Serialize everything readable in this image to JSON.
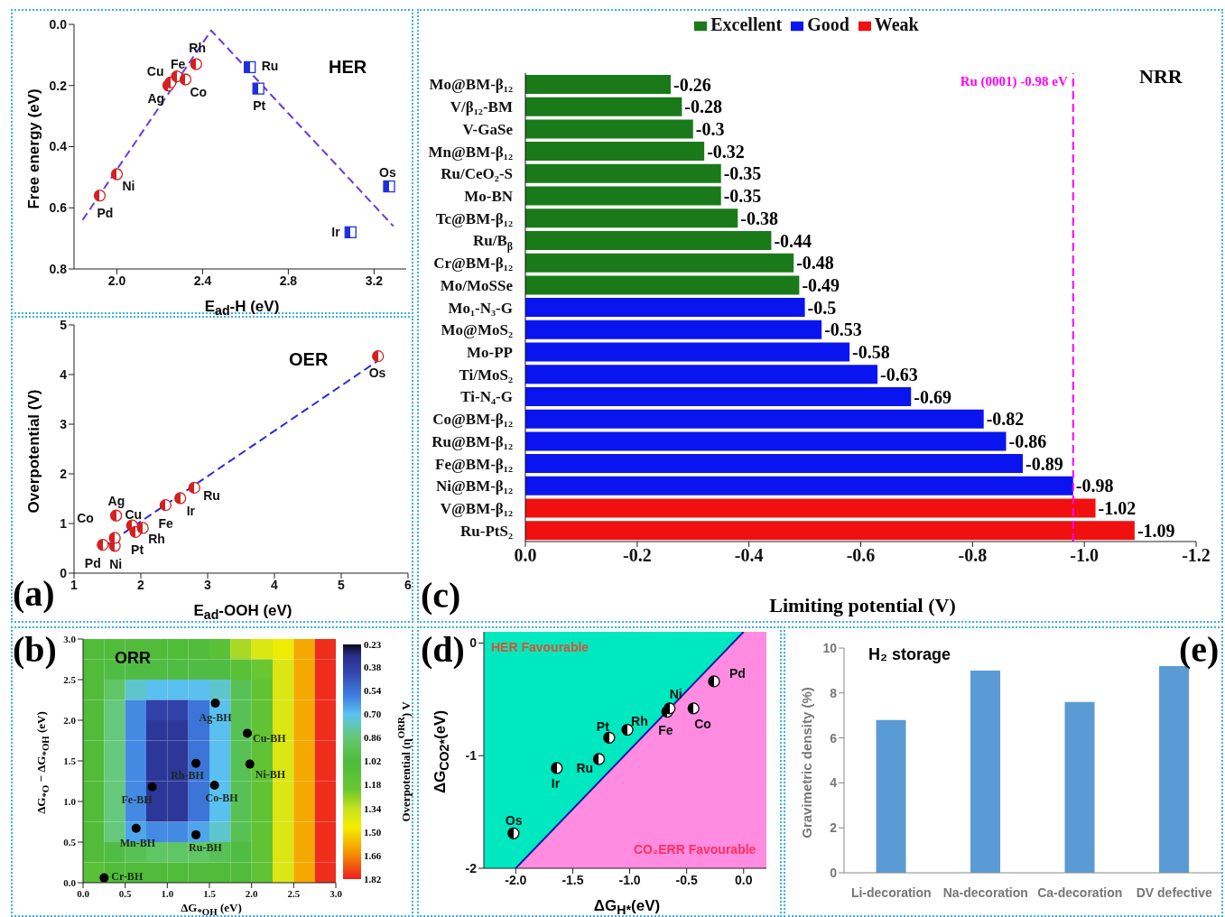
{
  "chart_data": [
    {
      "type": "scatter",
      "xlabel": "E$_{ad}$-H (eV)",
      "ylabel": "Free energy (eV)",
      "xlim": [
        1.8,
        3.35
      ],
      "xticks": [
        {
          "value": 2,
          "label": "2.0"
        },
        2.4,
        2.8,
        3.2
      ],
      "ylim": [
        0.8,
        0
      ],
      "yticks": [
        {
          "value": 0,
          "label": "0.0"
        },
        0.2,
        0.4,
        0.6,
        0.8
      ],
      "series": [
        {
          "type": "scatter",
          "color": "#d42020",
          "marker": "circle",
          "x": [
            1.92,
            2.0,
            2.24,
            2.25,
            2.28,
            2.32,
            2.37
          ],
          "values": [
            0.56,
            0.49,
            0.2,
            0.19,
            0.17,
            0.18,
            0.13
          ]
        },
        {
          "type": "scatter",
          "color": "#1f2fe0",
          "marker": "square",
          "x": [
            2.62,
            2.66,
            3.27,
            3.09
          ],
          "values": [
            0.14,
            0.21,
            0.53,
            0.68
          ]
        },
        {
          "type": "line",
          "color": "#6a3ae0",
          "line_style": "dashed",
          "x": [
            1.84,
            2.44,
            3.29
          ],
          "values": [
            0.64,
            0.02,
            0.66
          ]
        }
      ],
      "annotations": [
        {
          "text": "Pd",
          "x": 1.92,
          "y": 0.56
        },
        {
          "text": "Ni",
          "x": 2.0,
          "y": 0.49
        },
        {
          "text": "Ag",
          "x": 2.24,
          "y": 0.2
        },
        {
          "text": "Cu",
          "x": 2.25,
          "y": 0.19
        },
        {
          "text": "Fe",
          "x": 2.28,
          "y": 0.17
        },
        {
          "text": "Co",
          "x": 2.32,
          "y": 0.18
        },
        {
          "text": "Rh",
          "x": 2.37,
          "y": 0.13
        },
        {
          "text": "Ru",
          "x": 2.62,
          "y": 0.14
        },
        {
          "text": "Pt",
          "x": 2.66,
          "y": 0.21
        },
        {
          "text": "Os",
          "x": 3.27,
          "y": 0.53
        },
        {
          "text": "Ir",
          "x": 3.09,
          "y": 0.68
        },
        "HER"
      ]
    },
    {
      "type": "scatter",
      "xlabel": "E$_{ad}$-OOH (eV)",
      "ylabel": "Overpotential (V)",
      "xlim": [
        1,
        6
      ],
      "xticks": [
        1,
        2,
        3,
        4,
        5,
        6
      ],
      "ylim": [
        0,
        5
      ],
      "yticks": [
        0,
        1,
        2,
        3,
        4,
        5
      ],
      "series": [
        {
          "type": "scatter",
          "color": "#d42020",
          "marker": "circle",
          "x": [
            1.43,
            1.61,
            1.61,
            1.63,
            1.87,
            1.92,
            2.03,
            2.37,
            2.59,
            2.8,
            5.55
          ],
          "values": [
            0.57,
            0.55,
            0.71,
            1.16,
            0.96,
            0.83,
            0.91,
            1.37,
            1.51,
            1.72,
            4.37
          ]
        },
        {
          "type": "line",
          "color": "#2a2ae0",
          "line_style": "dashed",
          "x": [
            1.43,
            5.53
          ],
          "values": [
            0.52,
            4.26
          ]
        }
      ],
      "annotations": [
        {
          "text": "Pd",
          "x": 1.43,
          "y": 0.57
        },
        {
          "text": "Ni",
          "x": 1.61,
          "y": 0.55
        },
        {
          "text": "Co",
          "x": 1.61,
          "y": 0.71
        },
        {
          "text": "Ag",
          "x": 1.63,
          "y": 1.16
        },
        {
          "text": "Cu",
          "x": 1.87,
          "y": 0.96
        },
        {
          "text": "Pt",
          "x": 1.92,
          "y": 0.83
        },
        {
          "text": "Rh",
          "x": 2.03,
          "y": 0.91
        },
        {
          "text": "Fe",
          "x": 2.37,
          "y": 1.37
        },
        {
          "text": "Ir",
          "x": 2.59,
          "y": 1.51
        },
        {
          "text": "Ru",
          "x": 2.8,
          "y": 1.72
        },
        {
          "text": "Os",
          "x": 5.55,
          "y": 4.37
        },
        "OER",
        "(a)"
      ]
    },
    {
      "type": "bar",
      "orientation": "horizontal",
      "stacked": true,
      "legend": "top",
      "data_labels": true,
      "xlabel": "Limiting potential (V)",
      "categories": [
        "Mo@BM-β₁₂",
        "V/β₁₂-BM",
        "V-GaSe",
        "Mn@BM-β₁₂",
        "Ru/CeO₂-S",
        "Mo-BN",
        "Tc@BM-β₁₂",
        "Ru/B$_{β}$",
        "Cr@BM-β₁₂",
        "Mo/MoSSe",
        "Mo₁-N₃-G",
        "Mo@MoS₂",
        "Mo-PP",
        "Ti/MoS₂",
        "Ti-N₄-G",
        "Co@BM-β₁₂",
        "Ru@BM-β₁₂",
        "Fe@BM-β₁₂",
        "Ni@BM-β₁₂",
        "V@BM-β₁₂",
        "Ru-PtS₂"
      ],
      "xlim": [
        0,
        -1.2
      ],
      "xticks": [
        {
          "value": 0,
          "label": "0.0"
        },
        -0.2,
        -0.4,
        -0.6,
        -0.8,
        {
          "value": -1,
          "label": "-1.0"
        },
        -1.2
      ],
      "series": [
        {
          "name": "Excellent",
          "color": "#1a7a1a",
          "values": [
            -0.26,
            -0.28,
            -0.3,
            -0.32,
            -0.35,
            -0.35,
            -0.38,
            -0.44,
            -0.48,
            -0.49,
            null,
            null,
            null,
            null,
            null,
            null,
            null,
            null,
            null,
            null,
            null
          ]
        },
        {
          "name": "Good",
          "color": "#0a14ee",
          "values": [
            null,
            null,
            null,
            null,
            null,
            null,
            null,
            null,
            null,
            null,
            -0.5,
            -0.53,
            -0.58,
            -0.63,
            -0.69,
            -0.82,
            -0.86,
            -0.89,
            -0.98,
            null,
            null
          ]
        },
        {
          "name": "Weak",
          "color": "#f01010",
          "values": [
            null,
            null,
            null,
            null,
            null,
            null,
            null,
            null,
            null,
            null,
            null,
            null,
            null,
            null,
            null,
            null,
            null,
            null,
            null,
            -1.02,
            -1.09
          ]
        }
      ],
      "ref_lines": [
        {
          "axis": "x",
          "value": -0.98,
          "label": "Ru (0001) -0.98 eV",
          "color": "#ff00ff",
          "line_style": "dashed"
        }
      ],
      "annotations": [
        "NRR",
        "(c)"
      ]
    },
    {
      "type": "heatmap",
      "xlabel": "ΔG$_{*OH}$ (eV)",
      "ylabel": "ΔG$_{*O}$ − ΔG$_{*OH}$ (eV)",
      "clabel": "Overpotential (η$^{ORR}$) V",
      "xlim": [
        0,
        3
      ],
      "xticks": [
        {
          "value": 0,
          "label": "0.0"
        },
        0.5,
        {
          "value": 1,
          "label": "1.0"
        },
        1.5,
        {
          "value": 2,
          "label": "2.0"
        },
        2.5,
        {
          "value": 3,
          "label": "3.0"
        }
      ],
      "ylim": [
        0,
        3
      ],
      "yticks": [
        {
          "value": 0,
          "label": "0.0"
        },
        0.5,
        {
          "value": 1,
          "label": "1.0"
        },
        1.5,
        {
          "value": 2,
          "label": "2.0"
        },
        2.5,
        {
          "value": 3,
          "label": "3.0"
        }
      ],
      "clim": [
        0.23,
        1.82
      ],
      "cticks": [
        0.23,
        0.38,
        0.54,
        {
          "value": 0.7,
          "label": "0.70"
        },
        0.86,
        1.02,
        1.18,
        1.34,
        {
          "value": 1.5,
          "label": "1.50"
        },
        1.66,
        1.82
      ],
      "cells": [
        [
          1.05,
          1.05,
          1.05,
          1.05,
          1.05,
          1.05,
          1.1,
          1.3,
          1.4,
          1.45,
          1.6,
          1.8
        ],
        [
          1.05,
          1.0,
          1.0,
          1.0,
          1.0,
          1.0,
          1.0,
          1.1,
          1.2,
          1.4,
          1.6,
          1.8
        ],
        [
          1.05,
          0.9,
          0.75,
          0.7,
          0.7,
          0.7,
          0.75,
          0.95,
          1.15,
          1.4,
          1.6,
          1.8
        ],
        [
          1.05,
          0.85,
          0.6,
          0.4,
          0.4,
          0.55,
          0.7,
          0.95,
          1.15,
          1.4,
          1.6,
          1.8
        ],
        [
          1.05,
          0.85,
          0.6,
          0.35,
          0.35,
          0.55,
          0.7,
          0.95,
          1.15,
          1.4,
          1.6,
          1.8
        ],
        [
          1.05,
          0.85,
          0.6,
          0.35,
          0.35,
          0.55,
          0.7,
          0.95,
          1.15,
          1.4,
          1.6,
          1.8
        ],
        [
          1.05,
          0.85,
          0.6,
          0.35,
          0.35,
          0.55,
          0.7,
          0.95,
          1.15,
          1.4,
          1.6,
          1.8
        ],
        [
          1.05,
          0.85,
          0.6,
          0.35,
          0.35,
          0.55,
          0.7,
          0.95,
          1.15,
          1.4,
          1.6,
          1.8
        ],
        [
          1.05,
          0.85,
          0.6,
          0.35,
          0.35,
          0.55,
          0.7,
          0.95,
          1.15,
          1.4,
          1.6,
          1.8
        ],
        [
          1.05,
          0.85,
          0.65,
          0.6,
          0.6,
          0.65,
          0.75,
          0.95,
          1.15,
          1.4,
          1.6,
          1.8
        ],
        [
          1.05,
          1.0,
          0.95,
          0.9,
          0.9,
          0.9,
          0.95,
          1.0,
          1.15,
          1.4,
          1.6,
          1.8
        ],
        [
          1.1,
          1.05,
          1.05,
          1.05,
          1.05,
          1.05,
          1.05,
          1.05,
          1.15,
          1.4,
          1.6,
          1.8
        ]
      ],
      "series": [
        {
          "type": "scatter",
          "color": "#000000",
          "marker": "dot",
          "x": [
            1.57,
            1.95,
            1.98,
            1.34,
            1.56,
            0.82,
            0.63,
            1.34,
            0.25
          ],
          "values": [
            2.21,
            1.84,
            1.46,
            1.47,
            1.2,
            1.18,
            0.67,
            0.59,
            0.06
          ]
        }
      ],
      "annotations": [
        {
          "text": "Ag-BH",
          "x": 1.57,
          "y": 2.21
        },
        {
          "text": "Cu-BH",
          "x": 1.95,
          "y": 1.84
        },
        {
          "text": "Ni-BH",
          "x": 1.98,
          "y": 1.46
        },
        {
          "text": "Rh-BH",
          "x": 1.34,
          "y": 1.47
        },
        {
          "text": "Co-BH",
          "x": 1.56,
          "y": 1.2
        },
        {
          "text": "Fe-BH",
          "x": 0.82,
          "y": 1.18
        },
        {
          "text": "Mn-BH",
          "x": 0.63,
          "y": 0.67
        },
        {
          "text": "Ru-BH",
          "x": 1.34,
          "y": 0.59
        },
        {
          "text": "Cr-BH",
          "x": 0.25,
          "y": 0.06
        },
        "ORR",
        "(b)"
      ]
    },
    {
      "type": "scatter",
      "xlabel": "ΔG$_{H*}$(eV)",
      "ylabel": "ΔG$_{CO2*}$(eV)",
      "xlim": [
        -2.28,
        0.2
      ],
      "xticks": [
        {
          "value": -2,
          "label": "-2.0"
        },
        -1.5,
        {
          "value": -1,
          "label": "-1.0"
        },
        -0.5,
        {
          "value": 0,
          "label": "0.0"
        }
      ],
      "ylim": [
        -2,
        0.1
      ],
      "yticks": [
        -2,
        -1,
        0
      ],
      "series": [
        {
          "type": "line",
          "color": "#1a1aa0",
          "line_style": "solid",
          "x": [
            -2.0,
            0.0
          ],
          "values": [
            -2.0,
            0.1
          ]
        },
        {
          "type": "scatter",
          "color": "#000000",
          "marker": "circle",
          "x": [
            -2.02,
            -1.64,
            -1.27,
            -1.18,
            -1.02,
            -0.67,
            -0.65,
            -0.44,
            -0.26
          ],
          "values": [
            -1.69,
            -1.11,
            -1.03,
            -0.84,
            -0.77,
            -0.61,
            -0.58,
            -0.58,
            -0.34
          ]
        }
      ],
      "annotations": [
        {
          "text": "Os",
          "x": -2.02,
          "y": -1.69
        },
        {
          "text": "Ir",
          "x": -1.64,
          "y": -1.11
        },
        {
          "text": "Ru",
          "x": -1.27,
          "y": -1.03
        },
        {
          "text": "Pt",
          "x": -1.18,
          "y": -0.84
        },
        {
          "text": "Rh",
          "x": -1.02,
          "y": -0.77
        },
        {
          "text": "Fe",
          "x": -0.67,
          "y": -0.61
        },
        {
          "text": "Ni",
          "x": -0.65,
          "y": -0.58
        },
        {
          "text": "Co",
          "x": -0.44,
          "y": -0.58
        },
        {
          "text": "Pd",
          "x": -0.26,
          "y": -0.34
        },
        "HER Favourable",
        "CO₂ERR Favourable",
        "(d)"
      ]
    },
    {
      "type": "bar",
      "ylabel": "Gravimetric density (%)",
      "categories": [
        "Li-decoration",
        "Na-decoration",
        "Ca-decoration",
        "DV defective"
      ],
      "values": [
        6.8,
        9.0,
        7.6,
        9.2
      ],
      "color": "#5b9bd5",
      "ylim": [
        0,
        10
      ],
      "yticks": [
        0,
        2,
        4,
        6,
        8,
        10
      ],
      "annotations": [
        "H₂ storage",
        "(e)"
      ]
    }
  ]
}
